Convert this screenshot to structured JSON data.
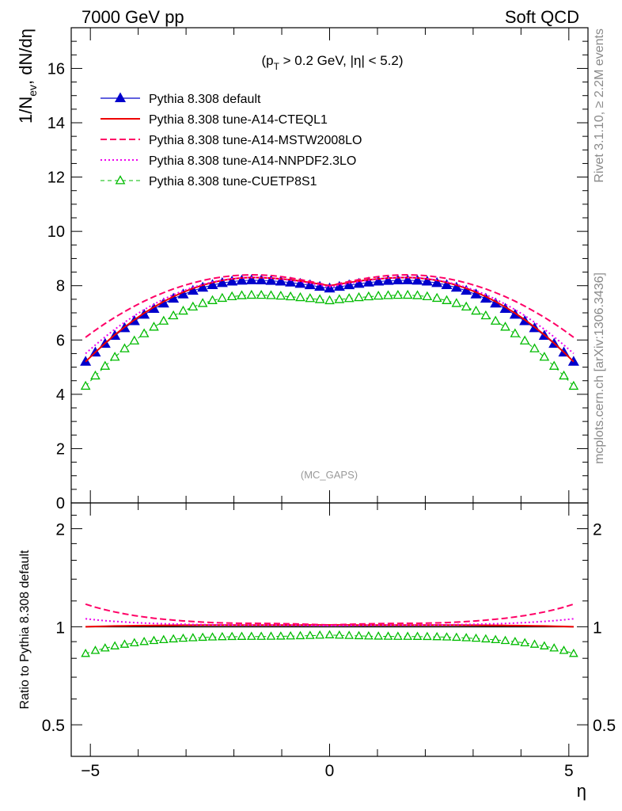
{
  "header": {
    "left": "7000 GeV pp",
    "right": "Soft QCD"
  },
  "chart_data": {
    "type": "line",
    "main": {
      "ylabel": "1/N_ev, dN/dη",
      "ylim": [
        0,
        17.5
      ],
      "yticks": [
        "0",
        "2",
        "4",
        "6",
        "8",
        "10",
        "12",
        "14",
        "16"
      ],
      "cut_label": "(p_T > 0.2 GeV, |η| < 5.2)",
      "analysis_label": "(MC_GAPS)"
    },
    "ratio": {
      "ylabel": "Ratio to Pythia 8.308 default",
      "ylim": [
        0.4,
        2.4
      ],
      "yticks": [
        "0.5",
        "1",
        "2"
      ]
    },
    "x": {
      "label": "η",
      "xlim": [
        -5.4,
        5.4
      ],
      "ticks": [
        "−5",
        "0",
        "5"
      ]
    },
    "side_labels": {
      "rivet": "Rivet 3.1.10, ≥ 2.2M events",
      "mcplots": "mcplots.cern.ch [arXiv:1306.3436]"
    },
    "series": [
      {
        "name": "Pythia 8.308 default",
        "color": "#0000cc",
        "style": "triangle-filled",
        "shape": {
          "edge": 5.2,
          "peak": 8.2,
          "center": 7.9
        }
      },
      {
        "name": "Pythia 8.308 tune-A14-CTEQL1",
        "color": "#ee0000",
        "style": "solid",
        "shape": {
          "edge": 5.2,
          "peak": 8.3,
          "center": 8.0
        }
      },
      {
        "name": "Pythia 8.308 tune-A14-MSTW2008LO",
        "color": "#ff0066",
        "style": "dashed",
        "shape": {
          "edge": 6.1,
          "peak": 8.4,
          "center": 8.0
        }
      },
      {
        "name": "Pythia 8.308 tune-A14-NNPDF2.3LO",
        "color": "#ee00ee",
        "style": "dotted",
        "shape": {
          "edge": 5.5,
          "peak": 8.3,
          "center": 7.95
        }
      },
      {
        "name": "Pythia 8.308 tune-CUETP8S1",
        "color": "#00bb00",
        "style": "triangle-open-dashed",
        "shape": {
          "edge": 4.3,
          "peak": 7.65,
          "center": 7.45
        }
      }
    ]
  }
}
